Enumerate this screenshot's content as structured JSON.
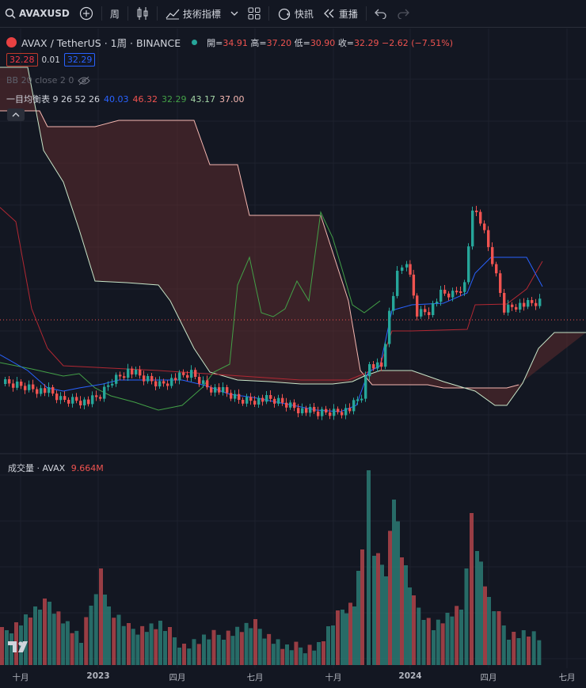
{
  "toolbar": {
    "symbol": "AVAXUSD",
    "interval": "周",
    "indicators_label": "技術指標",
    "snapshot_label": "快訊",
    "replay_label": "重播"
  },
  "legend": {
    "pair": "AVAX / TetherUS · 1周 · BINANCE",
    "open_label": "開=",
    "open": "34.91",
    "high_label": "高=",
    "high": "37.20",
    "low_label": "低=",
    "low": "30.90",
    "close_label": "收=",
    "close": "32.29",
    "change": "−2.62 (−7.51%)",
    "bid": "32.28",
    "spread": "0.01",
    "ask": "32.29",
    "bb_label": "BB 20 close 2 0",
    "ichimoku_label": "一目均衡表 9 26 52 26",
    "ichimoku_values": [
      "40.03",
      "46.32",
      "32.29",
      "43.17",
      "37.00"
    ]
  },
  "volume": {
    "label": "成交量 · AVAX",
    "value": "9.664M"
  },
  "xaxis_labels": [
    "十月",
    "2023",
    "四月",
    "七月",
    "十月",
    "2024",
    "四月",
    "七月"
  ],
  "colors": {
    "up": "#26a69a",
    "down": "#ef5350",
    "conversion": "#2962ff",
    "base": "#b22833",
    "lagging": "#43a047",
    "span_a": "#a5d6a7",
    "span_b": "#f5b7b1",
    "cloud": "#5c2b2e"
  },
  "chart_data": {
    "type": "candlestick",
    "interval": "weekly",
    "x_ticks": [
      "十月",
      "2023",
      "四月",
      "七月",
      "十月",
      "2024",
      "四月",
      "七月"
    ],
    "last_candle": {
      "open": 34.91,
      "high": 37.2,
      "low": 30.9,
      "close": 32.29
    },
    "volume_last": "9.664M"
  }
}
